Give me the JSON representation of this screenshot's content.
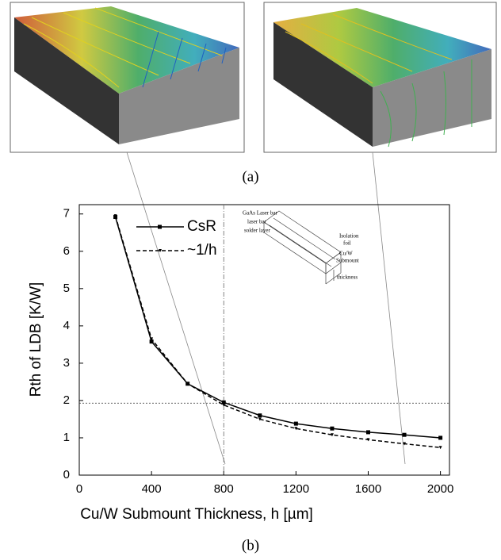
{
  "captions": [
    "(a)",
    "(b)"
  ],
  "inset": {
    "labels": [
      "GaAs Laser bar",
      "laser bar",
      "solder layer",
      "Isolation",
      "foil",
      "Cu/W",
      "Submount",
      "thickness"
    ]
  },
  "chart_data": {
    "type": "line",
    "xlabel": "Cu/W Submount Thickness, h [µm]",
    "ylabel": "Rth of LDB [K/W]",
    "x": [
      200,
      400,
      600,
      800,
      1000,
      1200,
      1400,
      1600,
      1800,
      2000
    ],
    "series": [
      {
        "name": "CsR",
        "color": "#000000",
        "dash": "solid",
        "marker": "square",
        "values": [
          6.92,
          3.58,
          2.45,
          1.95,
          1.6,
          1.38,
          1.25,
          1.15,
          1.08,
          1.0
        ]
      },
      {
        "name": "~1/h",
        "color": "#000000",
        "dash": "dashed",
        "marker": "triangle",
        "values": [
          6.95,
          3.65,
          2.45,
          1.88,
          1.5,
          1.25,
          1.08,
          0.95,
          0.84,
          0.74
        ]
      }
    ],
    "xlim": [
      0,
      2050
    ],
    "ylim": [
      0,
      7.25
    ],
    "xticks": [
      0,
      400,
      800,
      1200,
      1600,
      2000
    ],
    "yticks": [
      0,
      1,
      2,
      3,
      4,
      5,
      6,
      7
    ],
    "vline": 800,
    "hline": 1.93,
    "legend": "upper-left"
  }
}
